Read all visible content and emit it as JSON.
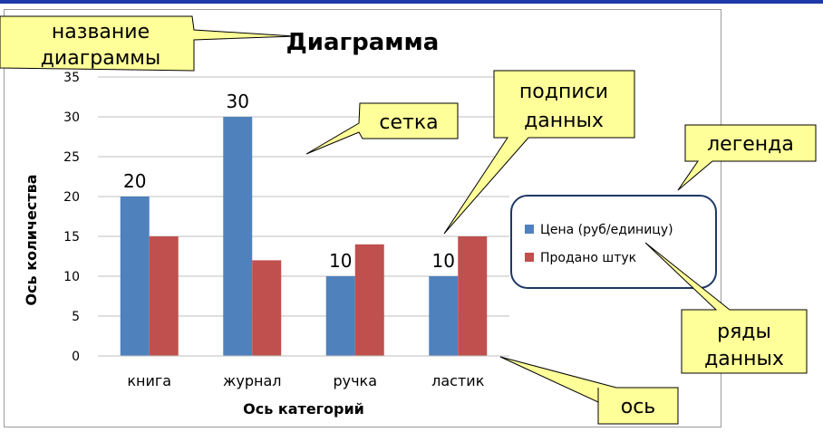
{
  "colors": {
    "top_bar": "#1f3aa8",
    "series_blue": "#4f81bd",
    "series_red": "#c0504d",
    "grid": "#bfbfbf",
    "callout_fill": "#ffff99",
    "legend_border": "#1f3864"
  },
  "chart_data": {
    "type": "bar",
    "title": "Диаграмма",
    "xlabel": "Ось категорий",
    "ylabel": "Ось количества",
    "categories": [
      "книга",
      "журнал",
      "ручка",
      "ластик"
    ],
    "series": [
      {
        "name": "Цена (руб/единицу)",
        "values": [
          20,
          30,
          10,
          10
        ]
      },
      {
        "name": "Продано штук",
        "values": [
          15,
          12,
          14,
          15
        ]
      }
    ],
    "data_labels": [
      "20",
      "30",
      "10",
      "10"
    ],
    "y_ticks": [
      "0",
      "5",
      "10",
      "15",
      "20",
      "25",
      "30",
      "35"
    ],
    "ylim": [
      0,
      35
    ],
    "grid": true,
    "legend_position": "right"
  },
  "callouts": {
    "title_name": [
      "название",
      "диаграммы"
    ],
    "grid": [
      "сетка"
    ],
    "data_labels": [
      "подписи",
      "данных"
    ],
    "legend": [
      "легенда"
    ],
    "series": [
      "ряды",
      "данных"
    ],
    "axis": [
      "ось"
    ]
  }
}
